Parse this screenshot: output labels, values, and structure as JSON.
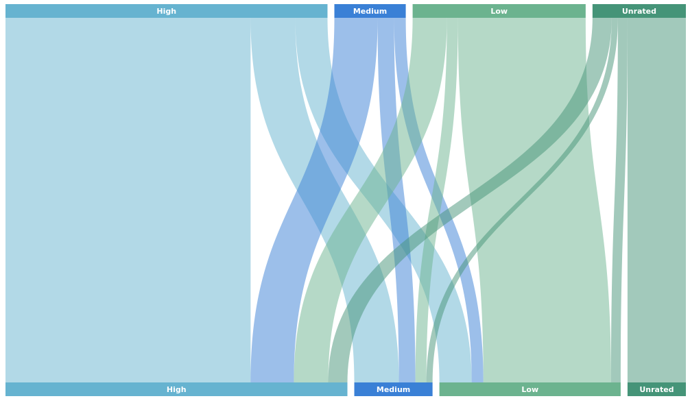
{
  "chart_data": {
    "type": "sankey",
    "categories": [
      "High",
      "Medium",
      "Low",
      "Unrated"
    ],
    "colors": [
      "#66b3d0",
      "#3a80d6",
      "#6cb38f",
      "#459478"
    ],
    "links": [
      {
        "source": 0,
        "target": 0,
        "value": 357
      },
      {
        "source": 0,
        "target": 1,
        "value": 65
      },
      {
        "source": 0,
        "target": 2,
        "value": 47
      },
      {
        "source": 1,
        "target": 0,
        "value": 63
      },
      {
        "source": 1,
        "target": 1,
        "value": 24
      },
      {
        "source": 1,
        "target": 2,
        "value": 17
      },
      {
        "source": 2,
        "target": 0,
        "value": 50
      },
      {
        "source": 2,
        "target": 1,
        "value": 16
      },
      {
        "source": 2,
        "target": 2,
        "value": 186
      },
      {
        "source": 3,
        "target": 0,
        "value": 28
      },
      {
        "source": 3,
        "target": 1,
        "value": 9
      },
      {
        "source": 3,
        "target": 2,
        "value": 14
      },
      {
        "source": 3,
        "target": 3,
        "value": 85
      }
    ]
  }
}
